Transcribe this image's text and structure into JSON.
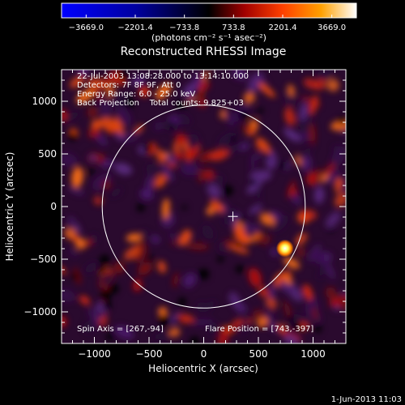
{
  "colorbar": {
    "ticks": [
      "−3669.0",
      "−2201.4",
      "−733.8",
      "733.8",
      "2201.4",
      "3669.0"
    ],
    "units_label": "(photons cm⁻² s⁻¹ asec⁻²)",
    "colors": [
      "#0000ff",
      "#0000a0",
      "#000000",
      "#a00000",
      "#ff4000",
      "#ffa000",
      "#ffffff"
    ]
  },
  "image": {
    "title": "Reconstructed RHESSI Image",
    "info_lines": [
      "22-Jul-2003 13:08:28.000 to 13:14:10.000",
      "Detectors: 7F 8F 9F, Att 0",
      "Energy Range: 6.0 - 25.0 keV",
      "Back Projection    Total counts: 9.825+03"
    ],
    "spin_axis": "Spin Axis = [267,-94]",
    "flare_position": "Flare Position = [743,-397]",
    "xlabel": "Heliocentric X (arcsec)",
    "ylabel": "Heliocentric Y (arcsec)",
    "xticks": [
      "−1000",
      "−500",
      "0",
      "500",
      "1000"
    ],
    "yticks": [
      "1000",
      "500",
      "0",
      "−500",
      "−1000"
    ],
    "xlim": [
      -1300,
      1300
    ],
    "ylim": [
      -1300,
      1300
    ],
    "limb_radius": 946,
    "crosshair_position": [
      267,
      -94
    ],
    "bright_source_position": [
      743,
      -397
    ],
    "colors": {
      "background": "#000000",
      "limb": "#ffffff",
      "positive": "#c02010",
      "negative": "#4a1a6a",
      "bright": "#ffff80"
    }
  },
  "footer": {
    "timestamp": "1-Jun-2013 11:03"
  }
}
